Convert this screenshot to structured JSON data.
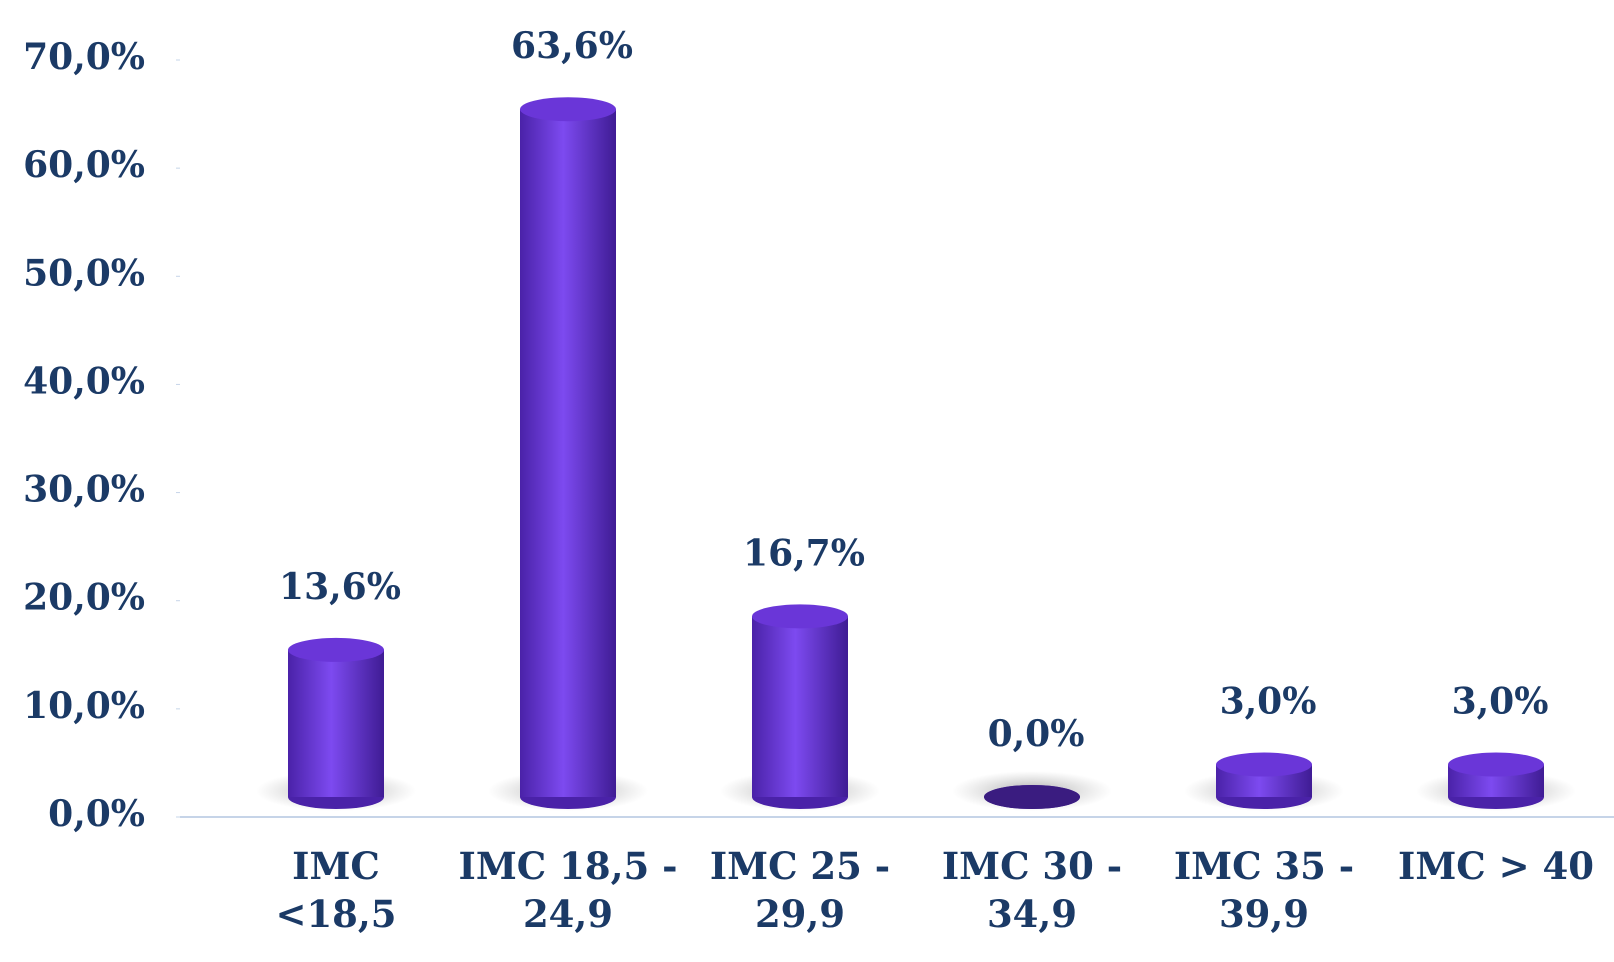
{
  "chart_data": {
    "type": "bar",
    "categories": [
      "IMC <18,5",
      "IMC 18,5 - 24,9",
      "IMC 25 - 29,9",
      "IMC 30 - 34,9",
      "IMC 35 - 39,9",
      "IMC > 40"
    ],
    "values": [
      13.6,
      63.6,
      16.7,
      0,
      3.0,
      3.0
    ],
    "value_labels": [
      "13,6%",
      "63,6%",
      "16,7%",
      "0,0%",
      "3,0%",
      "3,0%"
    ],
    "color": "#7040e0",
    "ylim": [
      0,
      70
    ],
    "yticks": [
      {
        "value": 0,
        "label": "0,0%"
      },
      {
        "value": 10,
        "label": "10,0%"
      },
      {
        "value": 20,
        "label": "20,0%"
      },
      {
        "value": 30,
        "label": "30,0%"
      },
      {
        "value": 40,
        "label": "40,0%"
      },
      {
        "value": 50,
        "label": "50,0%"
      },
      {
        "value": 60,
        "label": "60,0%"
      },
      {
        "value": 70,
        "label": "70,0%"
      }
    ],
    "grid": false
  }
}
